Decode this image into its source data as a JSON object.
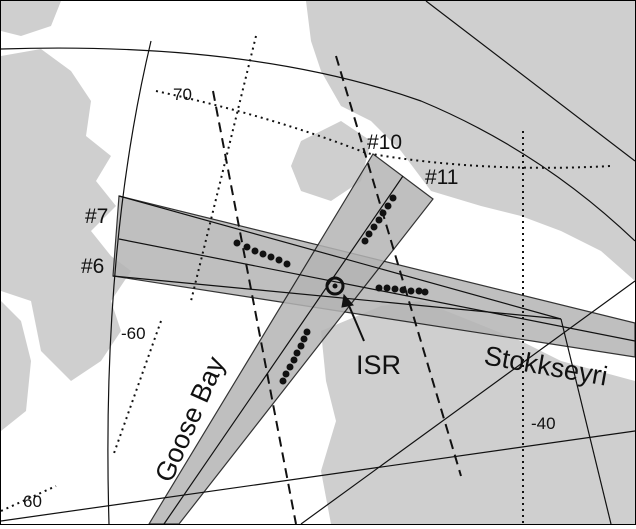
{
  "map": {
    "colors": {
      "land": "#cfcfcf",
      "beam": "#b4b4b4",
      "lines": "#111111",
      "background": "#ffffff"
    },
    "labels": {
      "beam_7": "#7",
      "beam_6": "#6",
      "beam_10": "#10",
      "beam_11": "#11",
      "lat_70": "70",
      "lat_60_left": "-60",
      "lat_60_bottom": "60",
      "lon_40": "-40",
      "radar_isr": "ISR",
      "radar_goose_bay": "Goose Bay",
      "radar_stokkseyri": "Stokkseyri"
    }
  }
}
